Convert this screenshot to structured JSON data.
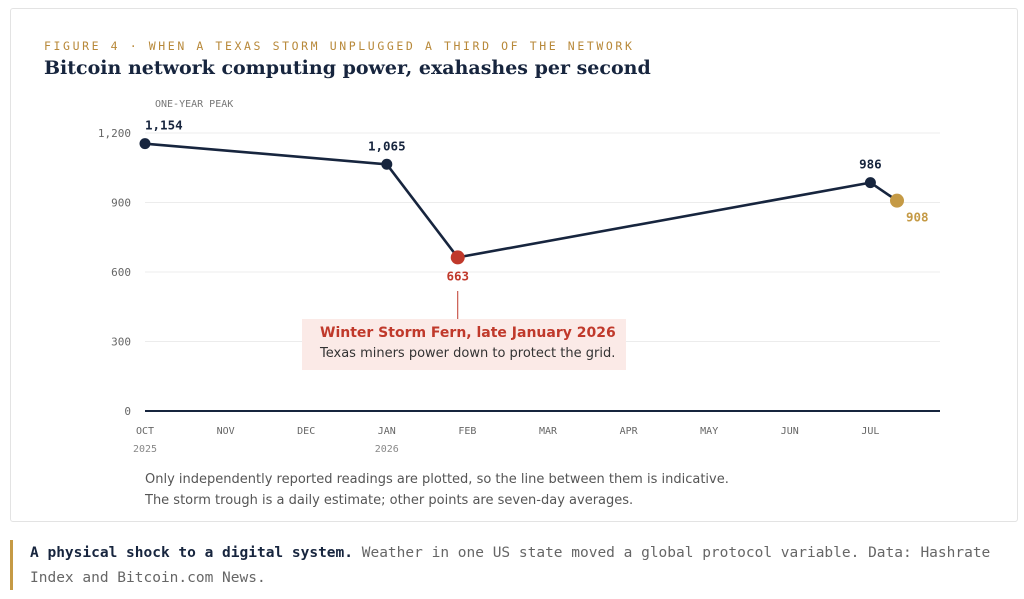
{
  "header": {
    "eyebrow": "FIGURE 4 · WHEN A TEXAS STORM UNPLUGGED A THIRD OF THE NETWORK",
    "title": "Bitcoin network computing power, exahashes per second"
  },
  "chart_data": {
    "type": "line",
    "title": "Bitcoin network computing power, exahashes per second",
    "ylim": [
      0,
      1200
    ],
    "y_ticks": [
      0,
      300,
      600,
      900,
      1200
    ],
    "y_tick_labels": [
      "0",
      "300",
      "600",
      "900",
      "1,200"
    ],
    "x_ticks": [
      {
        "label": "OCT",
        "year": "2025"
      },
      {
        "label": "NOV",
        "year": ""
      },
      {
        "label": "DEC",
        "year": ""
      },
      {
        "label": "JAN",
        "year": "2026"
      },
      {
        "label": "FEB",
        "year": ""
      },
      {
        "label": "MAR",
        "year": ""
      },
      {
        "label": "APR",
        "year": ""
      },
      {
        "label": "MAY",
        "year": ""
      },
      {
        "label": "JUN",
        "year": ""
      },
      {
        "label": "JUL",
        "year": ""
      }
    ],
    "points": [
      {
        "month": 0.0,
        "value": 1154,
        "label": "1,154",
        "kind": "normal"
      },
      {
        "month": 3.0,
        "value": 1065,
        "label": "1,065",
        "kind": "normal"
      },
      {
        "month": 3.88,
        "value": 663,
        "label": "663",
        "kind": "storm"
      },
      {
        "month": 9.0,
        "value": 986,
        "label": "986",
        "kind": "normal"
      },
      {
        "month": 9.33,
        "value": 908,
        "label": "908",
        "kind": "latest"
      }
    ],
    "peak_label": "ONE-YEAR PEAK",
    "annotation": {
      "title": "Winter Storm Fern, late January 2026",
      "text": "Texas miners power down to protect the grid."
    },
    "colors": {
      "line": "#17253e",
      "storm": "#c0392b",
      "latest": "#c59a45",
      "axis": "#17253e",
      "grid": "#ececec"
    },
    "grid": true
  },
  "notes": {
    "line1": "Only independently reported readings are plotted, so the line between them is indicative.",
    "line2": "The storm trough is a daily estimate; other points are seven-day averages."
  },
  "caption": {
    "lead": "A physical shock to a digital system.",
    "text": " Weather in one US state moved a global protocol variable. Data: Hashrate Index and Bitcoin.com News."
  }
}
